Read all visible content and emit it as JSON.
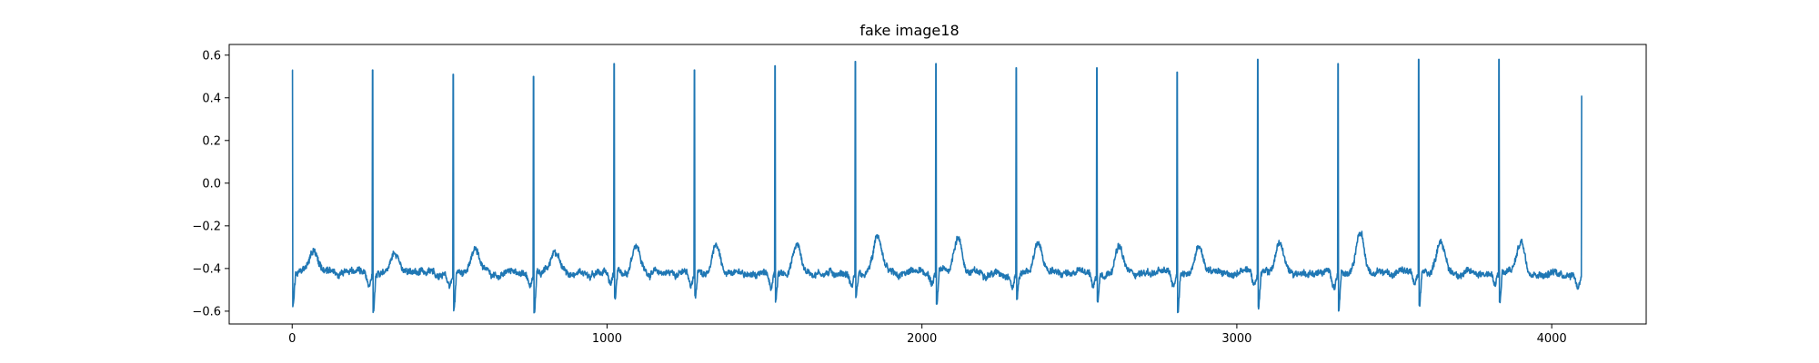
{
  "chart_data": {
    "type": "line",
    "title": "fake image18",
    "xlabel": "",
    "ylabel": "",
    "xlim": [
      -200,
      4300
    ],
    "ylim": [
      -0.66,
      0.65
    ],
    "x_ticks": [
      0,
      1000,
      2000,
      3000,
      4000
    ],
    "x_tick_labels": [
      "0",
      "1000",
      "2000",
      "3000",
      "4000"
    ],
    "y_ticks": [
      0.6,
      0.4,
      0.2,
      0.0,
      -0.2,
      -0.4,
      -0.6
    ],
    "y_tick_labels": [
      "0.6",
      "0.4",
      "0.2",
      "0.0",
      "−0.2",
      "−0.4",
      "−0.6"
    ],
    "grid": false,
    "legend": "none",
    "series": [
      {
        "color": "#1f77b4",
        "samples": 4096,
        "baseline": -0.42,
        "beat_period": 255,
        "r_peaks": [
          {
            "x": 0,
            "y": 0.53
          },
          {
            "x": 255,
            "y": 0.53
          },
          {
            "x": 511,
            "y": 0.51
          },
          {
            "x": 766,
            "y": 0.5
          },
          {
            "x": 1022,
            "y": 0.56
          },
          {
            "x": 1277,
            "y": 0.53
          },
          {
            "x": 1533,
            "y": 0.55
          },
          {
            "x": 1788,
            "y": 0.57
          },
          {
            "x": 2044,
            "y": 0.56
          },
          {
            "x": 2299,
            "y": 0.54
          },
          {
            "x": 2555,
            "y": 0.54
          },
          {
            "x": 2810,
            "y": 0.52
          },
          {
            "x": 3066,
            "y": 0.58
          },
          {
            "x": 3321,
            "y": 0.56
          },
          {
            "x": 3577,
            "y": 0.58
          },
          {
            "x": 3832,
            "y": 0.58
          },
          {
            "x": 4095,
            "y": 0.41
          }
        ],
        "troughs": [
          -0.57,
          -0.6,
          -0.59,
          -0.6,
          -0.54,
          -0.53,
          -0.55,
          -0.53,
          -0.56,
          -0.54,
          -0.56,
          -0.6,
          -0.58,
          -0.59,
          -0.57,
          -0.56,
          -0.57
        ],
        "t_wave_peaks": [
          -0.32,
          -0.32,
          -0.31,
          -0.32,
          -0.28,
          -0.29,
          -0.29,
          -0.25,
          -0.25,
          -0.28,
          -0.3,
          -0.3,
          -0.28,
          -0.23,
          -0.26,
          -0.27
        ]
      }
    ]
  }
}
